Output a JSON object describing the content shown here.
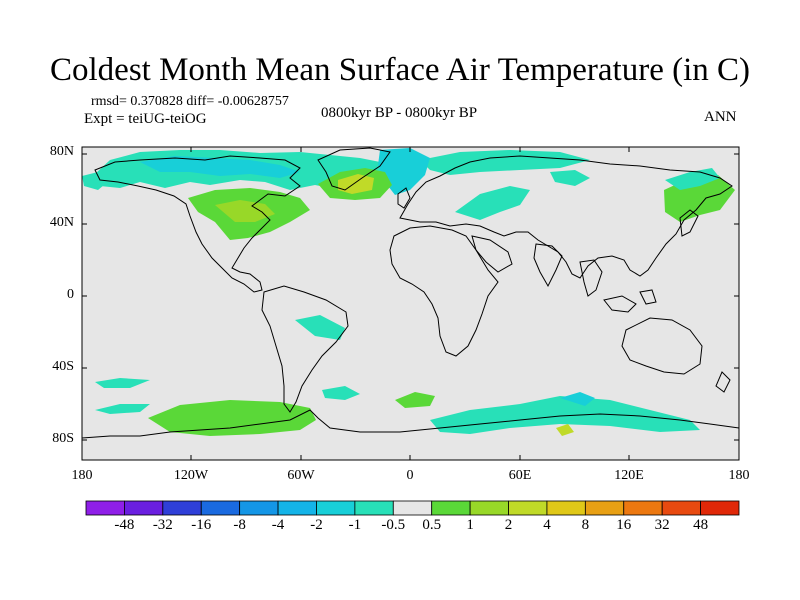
{
  "header": {
    "title": "Coldest Month Mean Surface Air Temperature (in C)",
    "stats": "rmsd= 0.370828 diff= -0.00628757",
    "experiment": "Expt = teiUG-teiOG",
    "period": "0800kyr BP - 0800kyr BP",
    "season": "ANN"
  },
  "axes": {
    "y_ticks": [
      "80N",
      "40N",
      "0",
      "40S",
      "80S"
    ],
    "x_ticks": [
      "180",
      "120W",
      "60W",
      "0",
      "60E",
      "120E",
      "180"
    ]
  },
  "colorbar": {
    "labels": [
      "-48",
      "-32",
      "-16",
      "-8",
      "-4",
      "-2",
      "-1",
      "-0.5",
      "0.5",
      "1",
      "2",
      "4",
      "8",
      "16",
      "32",
      "48"
    ],
    "colors": [
      "#8f1fe8",
      "#6a1fe0",
      "#2f3fd8",
      "#1a6ae0",
      "#1496e6",
      "#14b4e8",
      "#18cfd8",
      "#28e0b8",
      "#e6e6e6",
      "#5ad838",
      "#98d828",
      "#c0da28",
      "#e0c818",
      "#e8a014",
      "#ec7810",
      "#e84a10",
      "#e02808"
    ]
  },
  "map": {
    "ocean_color": "#e6e6e6",
    "coast_color": "#000000"
  }
}
